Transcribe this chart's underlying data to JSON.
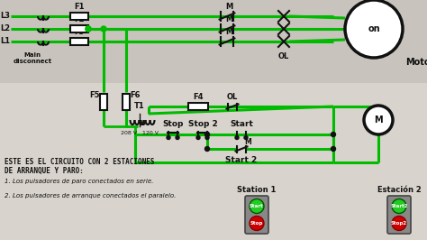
{
  "bg_color": "#c8c3bc",
  "line_color": "#00bb00",
  "dark_color": "#111111",
  "title_text": "ESTE ES EL CIRCUITO CON 2 ESTACIONES\nDE ARRANQUE Y PARO:",
  "point1": "1. Los pulsadores de paro conectados en serie.",
  "point2": "2. Los pulsadores de arranque conectados el paralelo.",
  "motor_label": "Motor",
  "on_label": "on",
  "m_label": "M",
  "station1_label": "Station 1",
  "station2_label": "Estación 2",
  "start_label": "Start",
  "start2_label": "Start 2",
  "stop_label": "Stop",
  "stop2_label": "Stop 2",
  "ol_label": "OL",
  "f4_label": "F4",
  "f5_label": "F5",
  "f6_label": "F6",
  "t1_label": "T1",
  "main_disconnect": "Main\ndisconnect",
  "208v_label": "208 V",
  "120v_label": "120 V",
  "figsize": [
    4.74,
    2.66
  ],
  "dpi": 100
}
